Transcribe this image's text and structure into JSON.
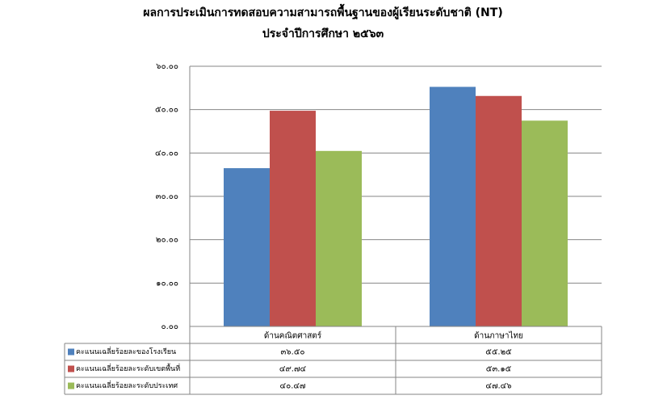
{
  "chart_data": {
    "type": "bar",
    "title": "ผลการประเมินการทดสอบความสามารถพื้นฐานของผู้เรียนระดับชาติ (NT)",
    "subtitle": "ประจำปีการศึกษา ๒๕๖๓",
    "categories": [
      "ด้านคณิตศาสตร์",
      "ด้านภาษาไทย"
    ],
    "series": [
      {
        "name": "คะแนนเฉลี่ยร้อยละของโรงเรียน",
        "color": "#4f81bd",
        "values": [
          36.5,
          55.25
        ],
        "value_labels": [
          "๓๖.๕๐",
          "๕๕.๒๕"
        ]
      },
      {
        "name": "คะแนนเฉลี่ยร้อยละระดับเขตพื้นที่",
        "color": "#c0504d",
        "values": [
          49.74,
          53.15
        ],
        "value_labels": [
          "๔๙.๗๔",
          "๕๓.๑๕"
        ]
      },
      {
        "name": "คะแนนเฉลี่ยร้อยละระดับประเทศ",
        "color": "#9bbb59",
        "values": [
          40.47,
          47.46
        ],
        "value_labels": [
          "๔๐.๔๗",
          "๔๗.๔๖"
        ]
      }
    ],
    "ylim": [
      0,
      60
    ],
    "yticks": [
      {
        "value": 0,
        "label": "๐.๐๐"
      },
      {
        "value": 10,
        "label": "๑๐.๐๐"
      },
      {
        "value": 20,
        "label": "๒๐.๐๐"
      },
      {
        "value": 30,
        "label": "๓๐.๐๐"
      },
      {
        "value": 40,
        "label": "๔๐.๐๐"
      },
      {
        "value": 50,
        "label": "๕๐.๐๐"
      },
      {
        "value": 60,
        "label": "๖๐.๐๐"
      }
    ],
    "grid": true
  }
}
